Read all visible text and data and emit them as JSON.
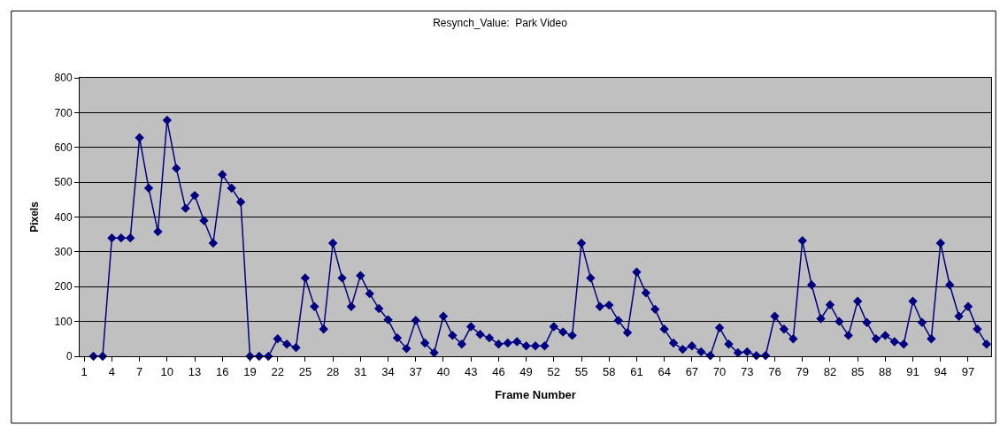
{
  "chart_data": {
    "type": "line",
    "title": "Resynch_Value:  Park Video",
    "xlabel": "Frame Number",
    "ylabel": "Pixels",
    "categories": [
      "1",
      null,
      null,
      "4",
      null,
      null,
      "7",
      null,
      null,
      "10",
      null,
      null,
      "13",
      null,
      null,
      "16",
      null,
      null,
      "19",
      null,
      null,
      "22",
      null,
      null,
      "25",
      null,
      null,
      "28",
      null,
      null,
      "31",
      null,
      null,
      "34",
      null,
      null,
      "37",
      null,
      null,
      "40",
      null,
      null,
      "43",
      null,
      null,
      "46",
      null,
      null,
      "49",
      null,
      null,
      "52",
      null,
      null,
      "55",
      null,
      null,
      "58",
      null,
      null,
      "61",
      null,
      null,
      "64",
      null,
      null,
      "67",
      null,
      null,
      "70",
      null,
      null,
      "73",
      null,
      null,
      "76",
      null,
      null,
      "79",
      null,
      null,
      "82",
      null,
      null,
      "85",
      null,
      null,
      "88",
      null,
      null,
      "91",
      null,
      null,
      "94",
      null,
      null,
      "97",
      null,
      null
    ],
    "series": [
      {
        "color": "#000080",
        "values": [
          null,
          0,
          0,
          340,
          340,
          340,
          628,
          483,
          358,
          678,
          540,
          425,
          462,
          390,
          325,
          522,
          483,
          443,
          0,
          0,
          0,
          50,
          35,
          25,
          225,
          143,
          78,
          325,
          225,
          143,
          232,
          180,
          137,
          105,
          53,
          22,
          103,
          38,
          10,
          115,
          60,
          35,
          85,
          63,
          53,
          35,
          38,
          42,
          30,
          30,
          30,
          85,
          70,
          60,
          325,
          225,
          143,
          147,
          103,
          68,
          242,
          182,
          135,
          78,
          38,
          20,
          30,
          13,
          2,
          82,
          35,
          10,
          13,
          2,
          2,
          115,
          78,
          50,
          332,
          205,
          108,
          148,
          100,
          60,
          158,
          97,
          50,
          60,
          42,
          35,
          158,
          97,
          50,
          325,
          205,
          115,
          143,
          78,
          35
        ]
      }
    ],
    "ylim": [
      0,
      800
    ],
    "yticks": [
      0,
      100,
      200,
      300,
      400,
      500,
      600,
      700,
      800
    ],
    "grid": "y",
    "marker": "diamond",
    "line_style": "solid"
  }
}
